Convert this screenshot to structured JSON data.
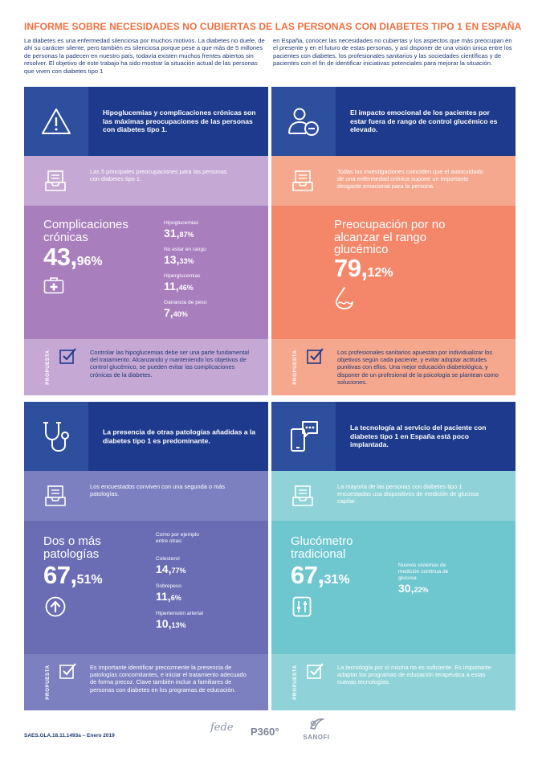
{
  "title": "INFORME SOBRE NECESIDADES NO CUBIERTAS DE LAS PERSONAS CON DIABETES TIPO 1 EN ESPAÑA",
  "intro": {
    "left": "La diabetes es una enfermedad silenciosa por muchos motivos. La diabetes no duele, de ahí su carácter silente, pero también es silenciosa porque pese a que más de 5 millones de personas la padecen en nuestro país, todavía existen muchos frentes abiertos sin resolver. El objetivo de este trabajo ha sido mostrar la situación actual de las personas que viven con diabetes tipo 1",
    "right": "en España, conocer las necesidades no cubiertas y los aspectos que más preocupan en el presente y en el futuro de estas personas, y así disponer de una visión única entre los pacientes con diabetes, los profesionales sanitarios y las sociedades científicas y de pacientes con el fin de identificar iniciativas potenciales para mejorar la situación."
  },
  "proposal_label": "PROPUESTA",
  "panels": {
    "hypo": {
      "header": "Hipoglucemias y complicaciones crónicas son las máximas preocupaciones de las personas con diabetes tipo 1.",
      "sub": "Las 5 principales preocupaciones para las personas con diabetes tipo 1:",
      "big_label": "Complicaciones crónicas",
      "big_int": "43,",
      "big_dec": "96%",
      "stats": [
        {
          "label": "Hipoglucemias",
          "int": "31,",
          "dec": "87%"
        },
        {
          "label": "No estar en rango",
          "int": "13,",
          "dec": "33%"
        },
        {
          "label": "Hiperglucemias",
          "int": "11,",
          "dec": "46%"
        },
        {
          "label": "Ganancia de peso",
          "int": "7,",
          "dec": "40%"
        }
      ],
      "proposal": "Controlar las hipoglucemias debe ser una parte fundamental del tratamiento. Alcanzando y manteniendo los objetivos de control glucémico, se pueden evitar las complicaciones crónicas de la diabetes."
    },
    "emotional": {
      "header": "El impacto emocional de los pacientes por estar fuera de rango de control glucémico es elevado.",
      "sub": "Todas las investigaciones coinciden que el autocuidado de una enfermedad crónica supone un importante desgaste emocional para la persona.",
      "big_label": "Preocupación por no alcanzar el rango glucémico",
      "big_int": "79,",
      "big_dec": "12%",
      "proposal": "Los profesionales sanitarios apuestan por individualizar los objetivos según cada paciente, y evitar adoptar actitudes punitivas con ellos. Una mejor educación diabetológica, y disponer de un profesional de la psicología se plantean como soluciones."
    },
    "patologias": {
      "header": "La presencia de otras patologías añadidas a la diabetes tipo 1 es predominante.",
      "sub": "Los encuestados conviven con una segunda o más patologías.",
      "big_label": "Dos o más patologías",
      "big_int": "67,",
      "big_dec": "51%",
      "example": "Como por ejemplo entre otras:",
      "stats": [
        {
          "label": "Colesterol",
          "int": "14,",
          "dec": "77%"
        },
        {
          "label": "Sobrepeso",
          "int": "11,",
          "dec": "6%"
        },
        {
          "label": "Hipertensión arterial",
          "int": "10,",
          "dec": "13%"
        }
      ],
      "proposal": "Es importante identificar precozmente la presencia de patologías concomitantes, e iniciar el tratamiento adecuado de forma precoz. Clave también incluir a familiares de personas con diabetes en los programas.de educación."
    },
    "tecnologia": {
      "header": "La tecnología al servicio del paciente con diabetes tipo 1 en España está poco implantada.",
      "sub": "La mayoría de las personas con diabetes tipo 1 encuestadas usa dispositivos de medición de glucosa capilar.",
      "big_label": "Glucómetro tradicional",
      "big_int": "67,",
      "big_dec": "31%",
      "stats": [
        {
          "label": "Nuevos sistemas de medición continua de glucosa",
          "int": "30,",
          "dec": "22%"
        }
      ],
      "proposal": "La tecnología por sí misma no es suficiente. Es importante adaptar los programas de educación terapéutica a estas nuevas tecnologías."
    }
  },
  "footer": {
    "code": "SAES.GLA.18.11.1493a – Enero 2019",
    "logo1": "fede",
    "logo2": "P360°",
    "logo3": "SANOFI"
  },
  "colors": {
    "navy": "#1e3a8c",
    "orange": "#f0703f",
    "purple": "#a87ebd",
    "lilac": "#c5a8d3",
    "salmon": "#f4876a",
    "peach": "#f6a88e",
    "periwinkle": "#7c80c0",
    "indigo": "#6a6db4",
    "teal": "#6ec7cf",
    "lightteal": "#8fd3d8"
  }
}
